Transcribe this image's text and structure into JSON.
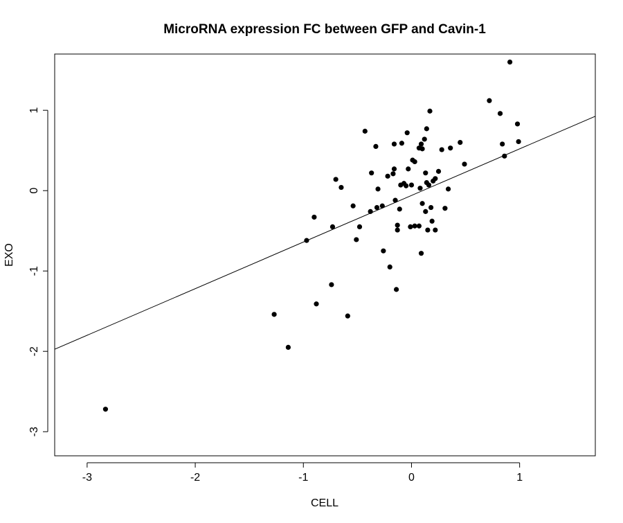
{
  "chart_data": {
    "type": "scatter",
    "title": "MicroRNA expression FC between GFP and Cavin-1",
    "xlabel": "CELL",
    "ylabel": "EXO",
    "xlim": [
      -3.3,
      1.7
    ],
    "ylim": [
      -3.3,
      1.7
    ],
    "xticks": [
      -3,
      -2,
      -1,
      0,
      1
    ],
    "yticks": [
      -3,
      -2,
      -1,
      0,
      1
    ],
    "grid": false,
    "point_color": "#000000",
    "fit_line": {
      "intercept": -0.06,
      "slope": 0.58
    },
    "points": [
      {
        "x": -2.83,
        "y": -2.72
      },
      {
        "x": -1.27,
        "y": -1.54
      },
      {
        "x": -1.14,
        "y": -1.95
      },
      {
        "x": -0.97,
        "y": -0.62
      },
      {
        "x": -0.9,
        "y": -0.33
      },
      {
        "x": -0.88,
        "y": -1.41
      },
      {
        "x": -0.74,
        "y": -1.17
      },
      {
        "x": -0.73,
        "y": -0.45
      },
      {
        "x": -0.7,
        "y": 0.14
      },
      {
        "x": -0.65,
        "y": 0.04
      },
      {
        "x": -0.59,
        "y": -1.56
      },
      {
        "x": -0.54,
        "y": -0.19
      },
      {
        "x": -0.51,
        "y": -0.61
      },
      {
        "x": -0.48,
        "y": -0.45
      },
      {
        "x": -0.43,
        "y": 0.74
      },
      {
        "x": -0.38,
        "y": -0.26
      },
      {
        "x": -0.37,
        "y": 0.22
      },
      {
        "x": -0.33,
        "y": 0.55
      },
      {
        "x": -0.32,
        "y": -0.21
      },
      {
        "x": -0.31,
        "y": 0.02
      },
      {
        "x": -0.27,
        "y": -0.19
      },
      {
        "x": -0.26,
        "y": -0.75
      },
      {
        "x": -0.22,
        "y": 0.18
      },
      {
        "x": -0.2,
        "y": -0.95
      },
      {
        "x": -0.17,
        "y": 0.21
      },
      {
        "x": -0.16,
        "y": 0.58
      },
      {
        "x": -0.16,
        "y": 0.27
      },
      {
        "x": -0.15,
        "y": -0.12
      },
      {
        "x": -0.14,
        "y": -1.23
      },
      {
        "x": -0.13,
        "y": -0.49
      },
      {
        "x": -0.13,
        "y": -0.43
      },
      {
        "x": -0.11,
        "y": -0.23
      },
      {
        "x": -0.1,
        "y": 0.07
      },
      {
        "x": -0.09,
        "y": 0.59
      },
      {
        "x": -0.07,
        "y": 0.09
      },
      {
        "x": -0.05,
        "y": 0.06
      },
      {
        "x": -0.04,
        "y": 0.72
      },
      {
        "x": -0.03,
        "y": 0.27
      },
      {
        "x": -0.01,
        "y": -0.45
      },
      {
        "x": 0.0,
        "y": 0.07
      },
      {
        "x": 0.01,
        "y": 0.38
      },
      {
        "x": 0.03,
        "y": 0.36
      },
      {
        "x": 0.03,
        "y": -0.44
      },
      {
        "x": 0.07,
        "y": -0.44
      },
      {
        "x": 0.07,
        "y": 0.53
      },
      {
        "x": 0.08,
        "y": 0.03
      },
      {
        "x": 0.09,
        "y": -0.78
      },
      {
        "x": 0.09,
        "y": 0.58
      },
      {
        "x": 0.1,
        "y": 0.52
      },
      {
        "x": 0.1,
        "y": -0.16
      },
      {
        "x": 0.12,
        "y": 0.64
      },
      {
        "x": 0.13,
        "y": 0.22
      },
      {
        "x": 0.13,
        "y": -0.26
      },
      {
        "x": 0.14,
        "y": 0.77
      },
      {
        "x": 0.14,
        "y": 0.1
      },
      {
        "x": 0.15,
        "y": -0.49
      },
      {
        "x": 0.16,
        "y": 0.07
      },
      {
        "x": 0.17,
        "y": 0.99
      },
      {
        "x": 0.18,
        "y": -0.21
      },
      {
        "x": 0.19,
        "y": -0.38
      },
      {
        "x": 0.2,
        "y": 0.12
      },
      {
        "x": 0.22,
        "y": 0.15
      },
      {
        "x": 0.22,
        "y": -0.49
      },
      {
        "x": 0.25,
        "y": 0.24
      },
      {
        "x": 0.28,
        "y": 0.51
      },
      {
        "x": 0.31,
        "y": -0.22
      },
      {
        "x": 0.34,
        "y": 0.02
      },
      {
        "x": 0.36,
        "y": 0.53
      },
      {
        "x": 0.45,
        "y": 0.6
      },
      {
        "x": 0.49,
        "y": 0.33
      },
      {
        "x": 0.72,
        "y": 1.12
      },
      {
        "x": 0.82,
        "y": 0.96
      },
      {
        "x": 0.84,
        "y": 0.58
      },
      {
        "x": 0.86,
        "y": 0.43
      },
      {
        "x": 0.91,
        "y": 1.6
      },
      {
        "x": 0.98,
        "y": 0.83
      },
      {
        "x": 0.99,
        "y": 0.61
      }
    ]
  }
}
